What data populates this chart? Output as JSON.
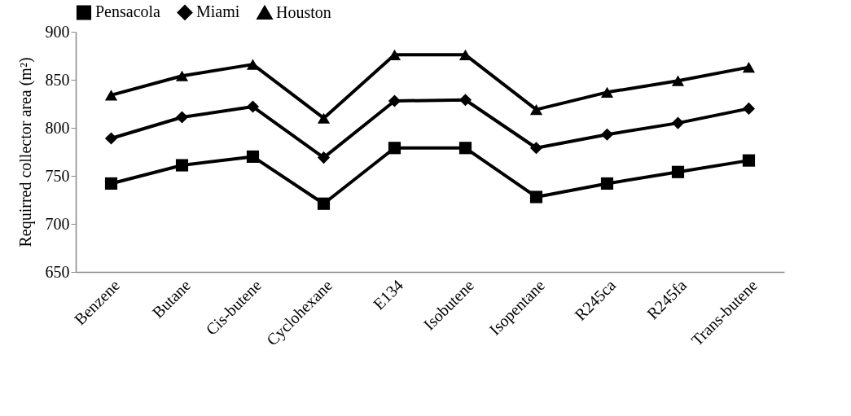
{
  "chart_data": {
    "type": "line",
    "ylabel": "Requirred collector area (m²)",
    "categories": [
      "Benzene",
      "Butane",
      "Cis-butene",
      "Cyclohexane",
      "E134",
      "Isobutene",
      "Isopentane",
      "R245ca",
      "R245fa",
      "Trans-butene"
    ],
    "series": [
      {
        "name": "Pensacola",
        "color": "#000000",
        "marker": "square",
        "values": [
          742,
          761,
          770,
          721,
          779,
          779,
          728,
          742,
          754,
          766
        ]
      },
      {
        "name": "Miami",
        "color": "#000000",
        "marker": "diamond",
        "values": [
          789,
          811,
          822,
          769,
          828,
          829,
          779,
          793,
          805,
          820
        ]
      },
      {
        "name": "Houston",
        "color": "#000000",
        "marker": "triangle",
        "values": [
          834,
          854,
          866,
          810,
          876,
          876,
          819,
          837,
          849,
          863
        ]
      }
    ],
    "ylim": [
      650,
      900
    ],
    "yticks": [
      650,
      700,
      750,
      800,
      850,
      900
    ],
    "grid": false,
    "legend": "top",
    "line_style": "solid"
  }
}
